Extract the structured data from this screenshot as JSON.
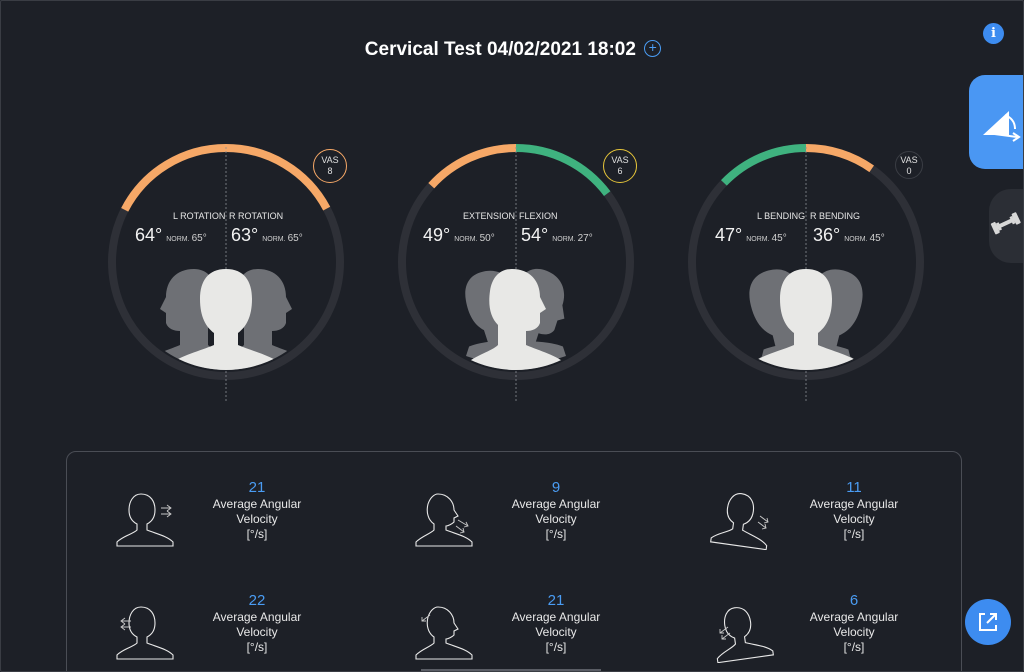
{
  "header": {
    "title": "Cervical Test 04/02/2021 18:02",
    "add_icon": "plus-circle-icon",
    "info_icon": "info-icon"
  },
  "colors": {
    "orange": "#f6a867",
    "green": "#3fb27f",
    "accent": "#4a9cf3",
    "ring": "#2e3037"
  },
  "sidebar": {
    "active_tab_icon": "range-of-motion-icon",
    "tab2_icon": "dumbbell-icon"
  },
  "gauges": [
    {
      "left_label": "L ROTATION",
      "right_label": "R ROTATION",
      "left_value": "64°",
      "right_value": "63°",
      "left_norm": "65°",
      "right_norm": "65°",
      "norm_label": "NORM.",
      "vas_label": "VAS",
      "vas_value": "8",
      "vas_color": "#f6a867",
      "left_arc_color": "#f6a867",
      "right_arc_color": "#f6a867",
      "left_fraction": 0.98,
      "right_fraction": 0.97
    },
    {
      "left_label": "EXTENSION",
      "right_label": "FLEXION",
      "left_value": "49°",
      "right_value": "54°",
      "left_norm": "50°",
      "right_norm": "27°",
      "norm_label": "NORM.",
      "vas_label": "VAS",
      "vas_value": "6",
      "vas_color": "#e6c53a",
      "left_arc_color": "#f6a867",
      "right_arc_color": "#3fb27f",
      "left_fraction": 0.75,
      "right_fraction": 0.83
    },
    {
      "left_label": "L BENDING",
      "right_label": "R BENDING",
      "left_value": "47°",
      "right_value": "36°",
      "left_norm": "45°",
      "right_norm": "45°",
      "norm_label": "NORM.",
      "vas_label": "VAS",
      "vas_value": "0",
      "vas_color": "#3a3d44",
      "left_arc_color": "#3fb27f",
      "right_arc_color": "#f6a867",
      "left_fraction": 0.72,
      "right_fraction": 0.55
    }
  ],
  "velocities": [
    {
      "value": "21",
      "label": "Average Angular Velocity",
      "unit": "[°/s]",
      "icon": "head-right-rotation-icon"
    },
    {
      "value": "9",
      "label": "Average Angular Velocity",
      "unit": "[°/s]",
      "icon": "head-flexion-icon"
    },
    {
      "value": "11",
      "label": "Average Angular Velocity",
      "unit": "[°/s]",
      "icon": "head-right-bending-icon"
    },
    {
      "value": "22",
      "label": "Average Angular Velocity",
      "unit": "[°/s]",
      "icon": "head-left-rotation-icon"
    },
    {
      "value": "21",
      "label": "Average Angular Velocity",
      "unit": "[°/s]",
      "icon": "head-extension-icon"
    },
    {
      "value": "6",
      "label": "Average Angular Velocity",
      "unit": "[°/s]",
      "icon": "head-left-bending-icon"
    }
  ],
  "export_icon": "export-icon"
}
